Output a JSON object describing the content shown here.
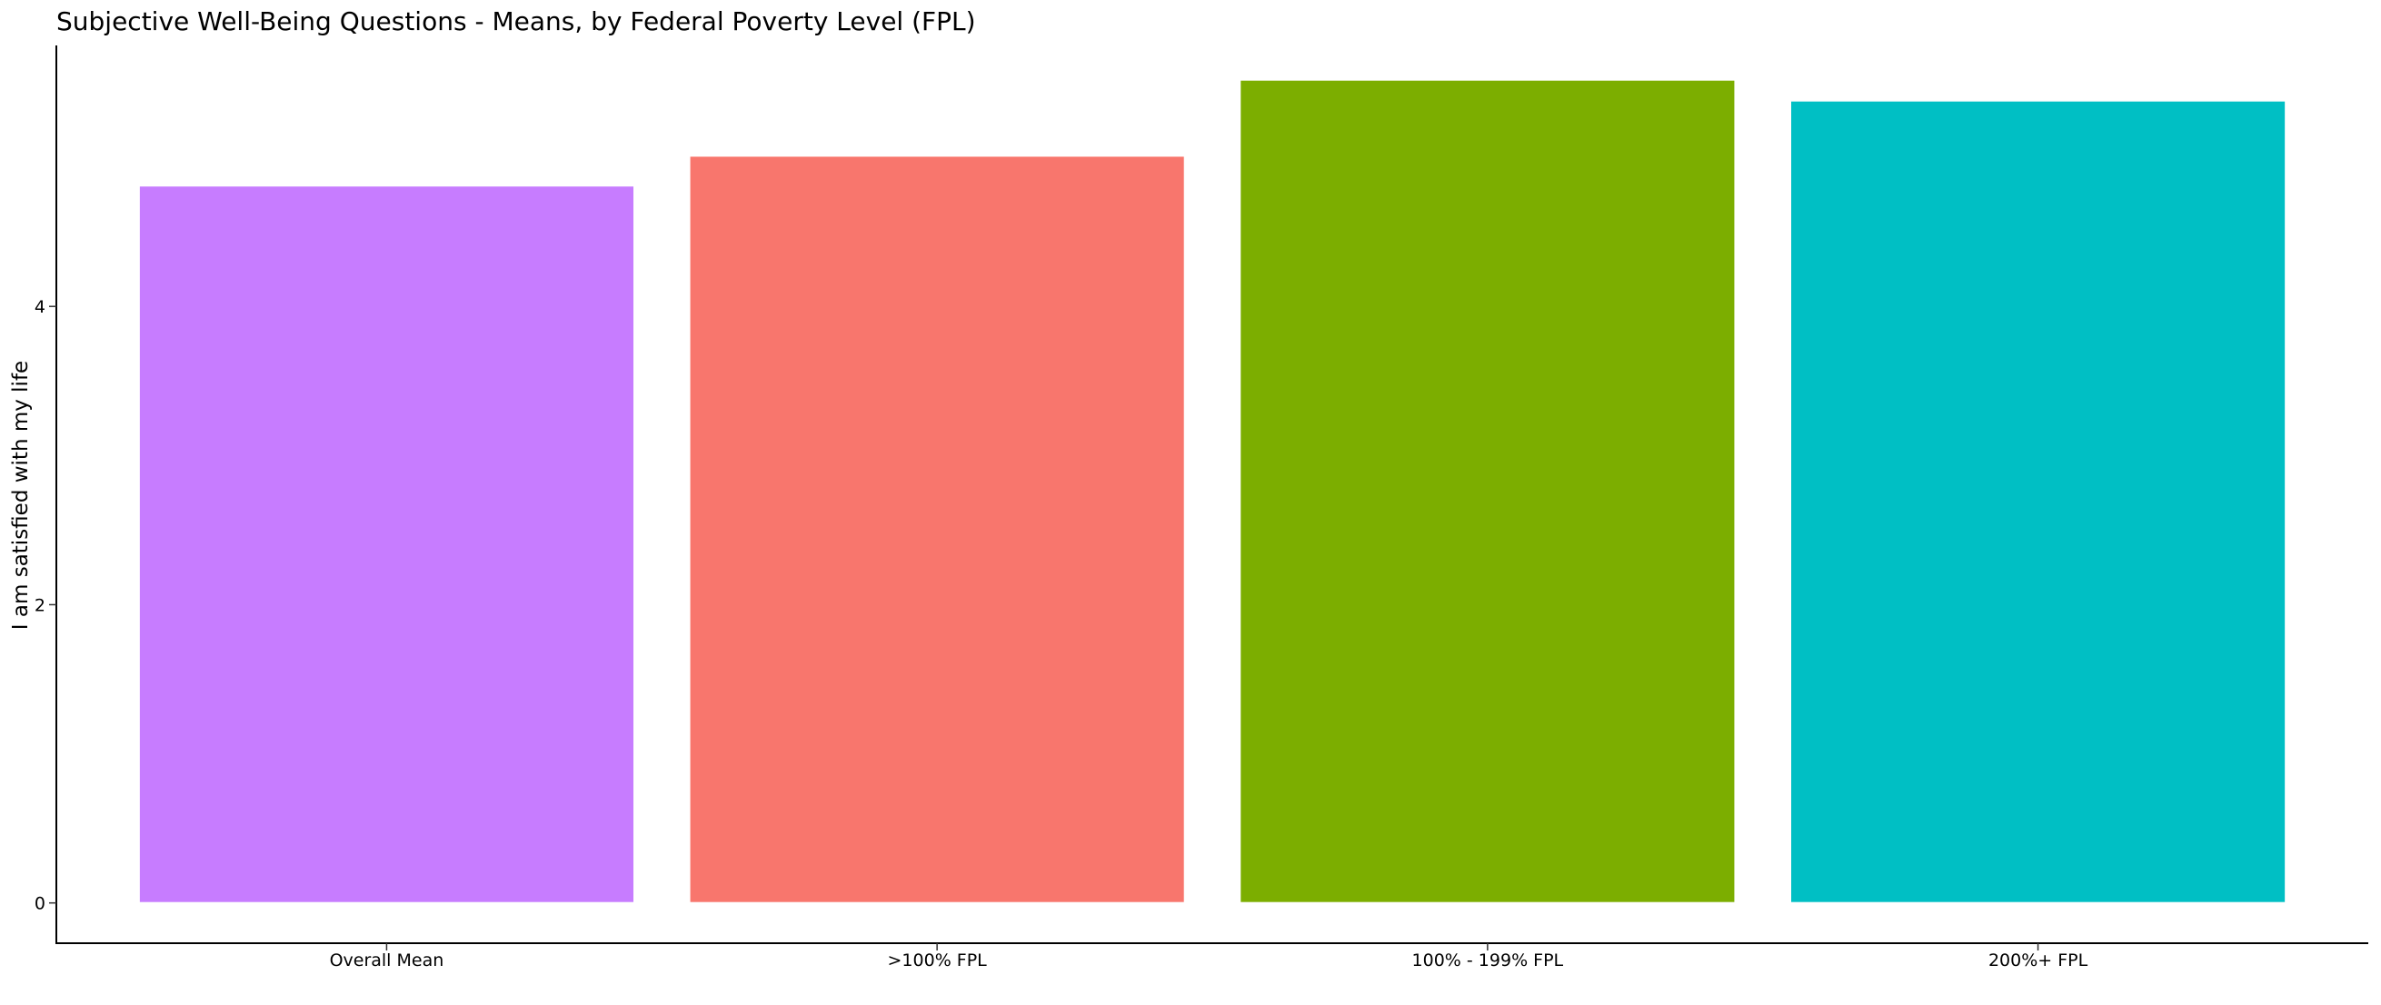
{
  "chart_data": {
    "type": "bar",
    "title": "Subjective Well-Being Questions - Means, by Federal Poverty Level (FPL)",
    "xlabel": "",
    "ylabel": "I am satisfied with my life",
    "categories": [
      "Overall Mean",
      ">100% FPL",
      "100% - 199% FPL",
      "200%+ FPL"
    ],
    "values": [
      4.81,
      5.01,
      5.52,
      5.38
    ],
    "colors": [
      "#C77CFF",
      "#F8766D",
      "#7CAE00",
      "#00BFC4"
    ],
    "yticks": [
      "0",
      "2",
      "4"
    ],
    "ylim": [
      -0.27,
      5.75
    ],
    "grid": false,
    "legend": "none"
  }
}
